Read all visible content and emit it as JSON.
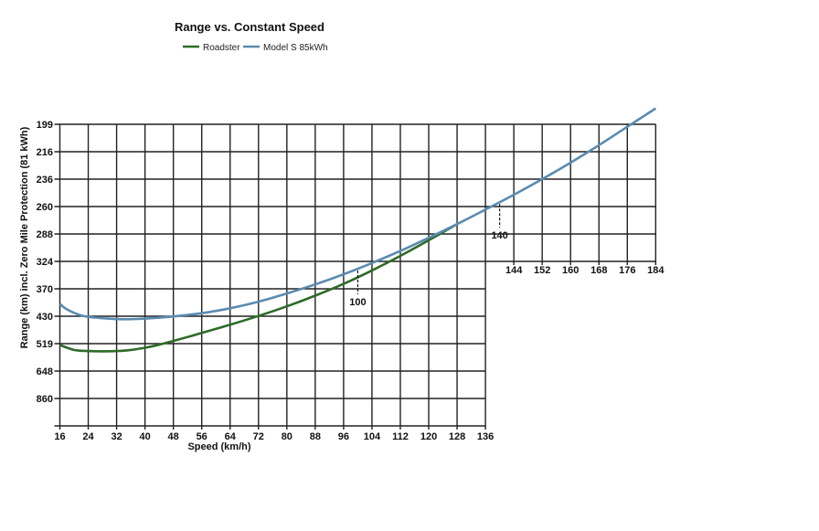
{
  "chart_data": {
    "type": "line",
    "title": "Range vs. Constant  Speed",
    "xlabel": "Speed (km/h)",
    "ylabel": "Range (km) incl. Zero Mile Protection (81 kWh)",
    "x_ticks_bottom": [
      16,
      24,
      32,
      40,
      48,
      56,
      64,
      72,
      80,
      88,
      96,
      104,
      112,
      120,
      128,
      136
    ],
    "x_ticks_upper": [
      144,
      152,
      160,
      168,
      176,
      184
    ],
    "y_ticks": [
      "199",
      "216",
      "236",
      "260",
      "288",
      "324",
      "370",
      "430",
      "519",
      "648",
      "860"
    ],
    "grid": true,
    "legend_position": "top-center",
    "series": [
      {
        "name": "Roadster",
        "color": "#2e6b28",
        "x": [
          16,
          20,
          24,
          28,
          32,
          36,
          40,
          44,
          48,
          52,
          56,
          64,
          72,
          80,
          88,
          96,
          104,
          112,
          120,
          128
        ],
        "y_level": [
          -0.05,
          -0.23,
          -0.27,
          -0.28,
          -0.27,
          -0.23,
          -0.15,
          -0.04,
          0.1,
          0.24,
          0.39,
          0.69,
          1.01,
          1.36,
          1.75,
          2.18,
          2.67,
          3.2,
          3.77,
          4.36
        ]
      },
      {
        "name": "Model S 85kWh",
        "color": "#5a8bb0",
        "x": [
          16,
          18,
          22,
          26,
          30,
          34,
          38,
          42,
          46,
          50,
          56,
          64,
          72,
          80,
          88,
          96,
          104,
          112,
          120,
          128,
          136,
          144,
          152,
          160,
          168,
          176,
          184
        ],
        "y_level": [
          1.45,
          1.25,
          1.03,
          0.95,
          0.91,
          0.89,
          0.9,
          0.93,
          0.97,
          1.02,
          1.11,
          1.29,
          1.53,
          1.83,
          2.16,
          2.53,
          2.94,
          3.38,
          3.86,
          4.36,
          4.89,
          5.43,
          6.0,
          6.6,
          7.24,
          7.91,
          8.58
        ]
      }
    ],
    "annotations": [
      {
        "label": "100",
        "x": 100
      },
      {
        "label": "140",
        "x": 140
      }
    ]
  }
}
